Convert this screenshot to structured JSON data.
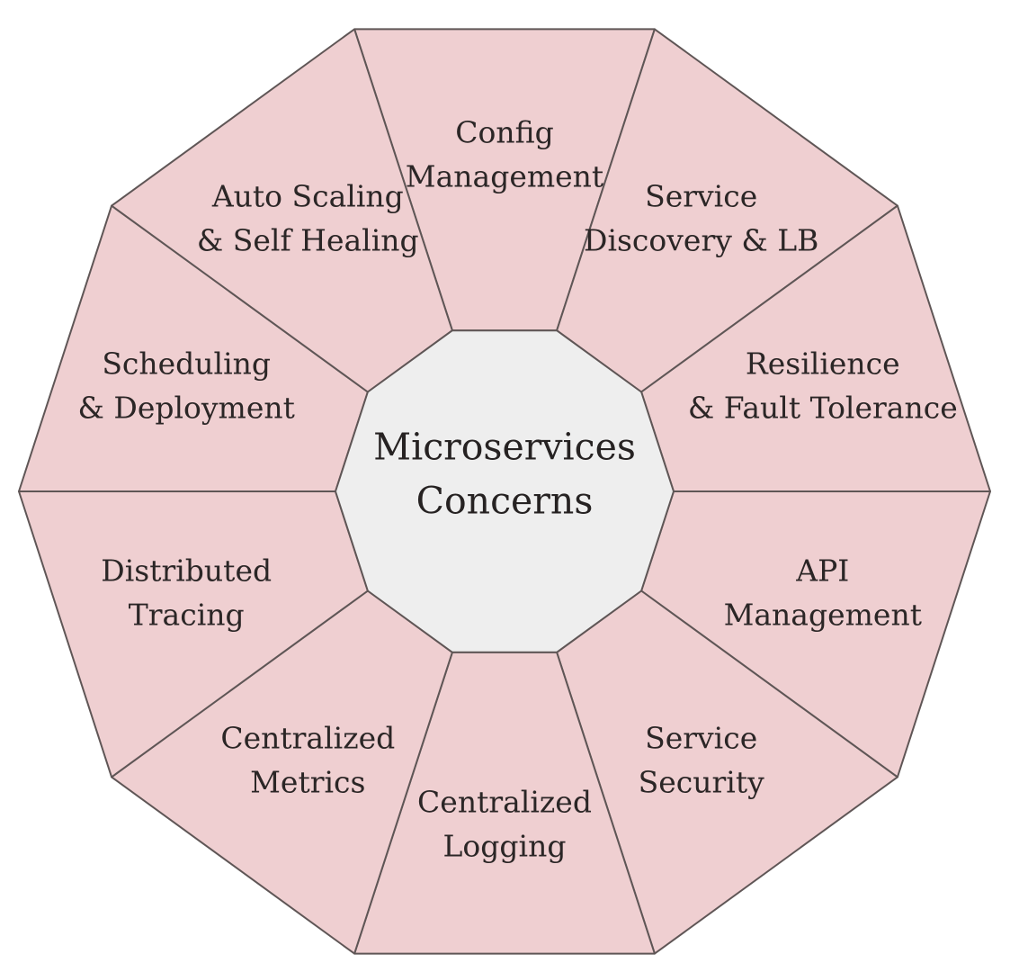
{
  "center": {
    "lines": [
      "Microservices",
      "Concerns"
    ]
  },
  "segments": [
    {
      "id": "config-management",
      "lines": [
        "Config",
        "Management"
      ]
    },
    {
      "id": "service-discovery-lb",
      "lines": [
        "Service",
        "Discovery & LB"
      ]
    },
    {
      "id": "resilience-fault-tolerance",
      "lines": [
        "Resilience",
        "& Fault Tolerance"
      ]
    },
    {
      "id": "api-management",
      "lines": [
        "API",
        "Management"
      ]
    },
    {
      "id": "service-security",
      "lines": [
        "Service",
        "Security"
      ]
    },
    {
      "id": "centralized-logging",
      "lines": [
        "Centralized",
        "Logging"
      ]
    },
    {
      "id": "centralized-metrics",
      "lines": [
        "Centralized",
        "Metrics"
      ]
    },
    {
      "id": "distributed-tracing",
      "lines": [
        "Distributed",
        "Tracing"
      ]
    },
    {
      "id": "scheduling-deployment",
      "lines": [
        "Scheduling",
        "& Deployment"
      ]
    },
    {
      "id": "auto-scaling-self-healing",
      "lines": [
        "Auto Scaling",
        "& Self Healing"
      ]
    }
  ],
  "colors": {
    "segment_fill": "#efcfd1",
    "center_fill": "#eeeeee",
    "outline": "#5f5656",
    "text": "#2b2626"
  }
}
